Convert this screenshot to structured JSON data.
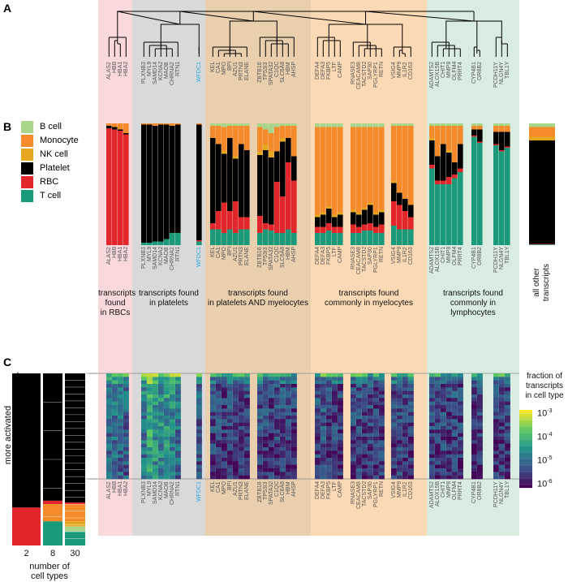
{
  "panels": {
    "a": "A",
    "b": "B",
    "c": "C"
  },
  "colors": {
    "B cell": "#a8d58a",
    "Monocyte": "#f58a2a",
    "NK cell": "#e6a61e",
    "Platelet": "#000000",
    "RBC": "#e3262b",
    "T cell": "#1a9a7a"
  },
  "legend": [
    "B cell",
    "Monocyte",
    "NK cell",
    "Platelet",
    "RBC",
    "T cell"
  ],
  "groups": [
    {
      "caption": "transcripts\nfound\nin RBCs",
      "band_color": "#f9d9dc",
      "blocks": [
        {
          "genes": [
            {
              "name": "ALAS2",
              "comp": [
                0,
                0.02,
                0,
                0.02,
                0.96,
                0
              ],
              "heat": -5.0
            },
            {
              "name": "HBB",
              "comp": [
                0,
                0.03,
                0,
                0.02,
                0.95,
                0
              ],
              "heat": -4.9
            },
            {
              "name": "HBA1",
              "comp": [
                0,
                0.05,
                0,
                0.01,
                0.94,
                0
              ],
              "heat": -5.0
            },
            {
              "name": "HBA2",
              "comp": [
                0,
                0.08,
                0,
                0.01,
                0.91,
                0
              ],
              "heat": -5.1
            }
          ]
        }
      ]
    },
    {
      "caption": "transcripts found\nin platelets",
      "band_color": "#d9d9d9",
      "blocks": [
        {
          "genes": [
            {
              "name": "PLXNB3",
              "comp": [
                0,
                0.01,
                0,
                0.97,
                0,
                0.02
              ],
              "heat": -4.8
            },
            {
              "name": "MYL9",
              "comp": [
                0,
                0.01,
                0,
                0.97,
                0,
                0.02
              ],
              "heat": -4.2
            },
            {
              "name": "SAMD14",
              "comp": [
                0,
                0.02,
                0,
                0.95,
                0,
                0.03
              ],
              "heat": -4.4
            },
            {
              "name": "KCNA2",
              "comp": [
                0,
                0.01,
                0,
                0.96,
                0,
                0.03
              ],
              "heat": -4.6
            },
            {
              "name": "MAOB",
              "comp": [
                0,
                0.01,
                0,
                0.94,
                0,
                0.05
              ],
              "heat": -4.5
            },
            {
              "name": "CHRNA2",
              "comp": [
                0,
                0.02,
                0,
                0.88,
                0,
                0.1
              ],
              "heat": -4.7
            },
            {
              "name": "RTN1",
              "comp": [
                0,
                0.01,
                0,
                0.89,
                0,
                0.1
              ],
              "heat": -4.9
            }
          ]
        },
        {
          "genes": [
            {
              "name": "WFDC1",
              "comp": [
                0,
                0.01,
                0,
                0.95,
                0.01,
                0.03
              ],
              "heat": -5.2,
              "highlight": "#29a8e0"
            }
          ]
        }
      ]
    },
    {
      "caption": "transcripts found\nin platelets AND myelocytes",
      "band_color": "#e9cfae",
      "blocks": [
        {
          "genes": [
            {
              "name": "KEL",
              "comp": [
                0.02,
                0.1,
                0,
                0.7,
                0.05,
                0.13
              ],
              "heat": -5.5
            },
            {
              "name": "CA1",
              "comp": [
                0.02,
                0.15,
                0,
                0.55,
                0.15,
                0.13
              ],
              "heat": -5.4
            },
            {
              "name": "MPO",
              "comp": [
                0.03,
                0.2,
                0.02,
                0.4,
                0.25,
                0.1
              ],
              "heat": -5.6
            },
            {
              "name": "BPI",
              "comp": [
                0.02,
                0.1,
                0,
                0.6,
                0.15,
                0.13
              ],
              "heat": -5.5
            },
            {
              "name": "AZU1",
              "comp": [
                0.02,
                0.25,
                0.02,
                0.35,
                0.26,
                0.1
              ],
              "heat": -5.6
            },
            {
              "name": "PRTN3",
              "comp": [
                0.02,
                0.15,
                0,
                0.6,
                0.1,
                0.13
              ],
              "heat": -5.5
            },
            {
              "name": "ELANE",
              "comp": [
                0.02,
                0.2,
                0,
                0.55,
                0.1,
                0.13
              ],
              "heat": -5.6
            }
          ]
        },
        {
          "genes": [
            {
              "name": "ZBTB16",
              "comp": [
                0.03,
                0.2,
                0.03,
                0.5,
                0.14,
                0.1
              ],
              "heat": -5.4
            },
            {
              "name": "TP53I3",
              "comp": [
                0.05,
                0.12,
                0.05,
                0.6,
                0.05,
                0.13
              ],
              "heat": -5.5
            },
            {
              "name": "SPATA32",
              "comp": [
                0.08,
                0.15,
                0.05,
                0.55,
                0.05,
                0.12
              ],
              "heat": -5.6
            },
            {
              "name": "C1QC",
              "comp": [
                0.03,
                0.2,
                0,
                0.25,
                0.42,
                0.1
              ],
              "heat": -5.5
            },
            {
              "name": "SLC6A8",
              "comp": [
                0.02,
                0.1,
                0.03,
                0.45,
                0.3,
                0.1
              ],
              "heat": -5.4
            },
            {
              "name": "HBM",
              "comp": [
                0.02,
                0.1,
                0,
                0.2,
                0.55,
                0.13
              ],
              "heat": -5.6
            },
            {
              "name": "AHSP",
              "comp": [
                0.02,
                0.25,
                0,
                0.2,
                0.43,
                0.1
              ],
              "heat": -5.6
            }
          ]
        }
      ]
    },
    {
      "caption": "transcripts found\ncommonly in myelocytes",
      "band_color": "#fbd9b4",
      "blocks": [
        {
          "genes": [
            {
              "name": "DEFA4",
              "comp": [
                0.03,
                0.72,
                0.02,
                0.08,
                0.05,
                0.1
              ],
              "heat": -5.4
            },
            {
              "name": "DEFA3",
              "comp": [
                0.03,
                0.7,
                0.02,
                0.1,
                0.05,
                0.1
              ],
              "heat": -5.3
            },
            {
              "name": "FKBP5",
              "comp": [
                0.03,
                0.65,
                0.02,
                0.12,
                0.06,
                0.12
              ],
              "heat": -5.5
            },
            {
              "name": "LTF",
              "comp": [
                0.03,
                0.72,
                0.02,
                0.08,
                0.05,
                0.1
              ],
              "heat": -5.5
            },
            {
              "name": "CAMP",
              "comp": [
                0.03,
                0.7,
                0.02,
                0.1,
                0.05,
                0.1
              ],
              "heat": -5.6
            }
          ]
        },
        {
          "genes": [
            {
              "name": "RNASE3",
              "comp": [
                0.03,
                0.68,
                0.02,
                0.1,
                0.07,
                0.1
              ],
              "heat": -5.5
            },
            {
              "name": "CEACAM8",
              "comp": [
                0.03,
                0.7,
                0.02,
                0.1,
                0.05,
                0.1
              ],
              "heat": -5.4
            },
            {
              "name": "TACSTD2",
              "comp": [
                0.03,
                0.66,
                0.02,
                0.12,
                0.05,
                0.12
              ],
              "heat": -5.6
            },
            {
              "name": "SAP30",
              "comp": [
                0.03,
                0.62,
                0.02,
                0.15,
                0.06,
                0.12
              ],
              "heat": -5.5
            },
            {
              "name": "PGLYRP1",
              "comp": [
                0.03,
                0.7,
                0.02,
                0.1,
                0.05,
                0.1
              ],
              "heat": -5.6
            },
            {
              "name": "RETN",
              "comp": [
                0.03,
                0.68,
                0.02,
                0.1,
                0.07,
                0.1
              ],
              "heat": -5.5
            }
          ]
        },
        {
          "genes": [
            {
              "name": "VSIG4",
              "comp": [
                0.02,
                0.45,
                0.02,
                0.15,
                0.2,
                0.16
              ],
              "heat": -5.5
            },
            {
              "name": "MMP9",
              "comp": [
                0.02,
                0.55,
                0,
                0.1,
                0.2,
                0.13
              ],
              "heat": -5.4
            },
            {
              "name": "IL1R2",
              "comp": [
                0.02,
                0.6,
                0,
                0.1,
                0.15,
                0.13
              ],
              "heat": -5.6
            },
            {
              "name": "CD163",
              "comp": [
                0.02,
                0.65,
                0,
                0.1,
                0.1,
                0.13
              ],
              "heat": -5.5
            }
          ]
        }
      ]
    },
    {
      "caption": "transcripts found\ncommonly in lymphocytes",
      "band_color": "#d8ede0",
      "blocks": [
        {
          "genes": [
            {
              "name": "ADAMTS2",
              "comp": [
                0.02,
                0.1,
                0.02,
                0.2,
                0.03,
                0.63
              ],
              "heat": -5.5
            },
            {
              "name": "ALOX15B",
              "comp": [
                0.02,
                0.25,
                0,
                0.2,
                0.03,
                0.5
              ],
              "heat": -5.6
            },
            {
              "name": "CHIT1",
              "comp": [
                0.02,
                0.15,
                0,
                0.3,
                0.03,
                0.5
              ],
              "heat": -5.5
            },
            {
              "name": "MMP8",
              "comp": [
                0.02,
                0.2,
                0.02,
                0.2,
                0.06,
                0.5
              ],
              "heat": -5.6
            },
            {
              "name": "OLFM4",
              "comp": [
                0.02,
                0.3,
                0,
                0.1,
                0.03,
                0.55
              ],
              "heat": -5.5
            },
            {
              "name": "PRRT4",
              "comp": [
                0.02,
                0.15,
                0,
                0.2,
                0.03,
                0.6
              ],
              "heat": -5.6
            }
          ]
        },
        {
          "genes": [
            {
              "name": "CYP4B1",
              "comp": [
                0.02,
                0.03,
                0,
                0.05,
                0.01,
                0.89
              ],
              "heat": -5.6
            },
            {
              "name": "OR8B2",
              "comp": [
                0.02,
                0.03,
                0,
                0.1,
                0.01,
                0.84
              ],
              "heat": -5.5
            }
          ]
        },
        {
          "genes": [
            {
              "name": "PCDH11Y",
              "comp": [
                0.02,
                0.05,
                0,
                0.1,
                0.01,
                0.82
              ],
              "heat": -5.6
            },
            {
              "name": "NLGN4Y",
              "comp": [
                0.02,
                0.05,
                0,
                0.15,
                0.01,
                0.77
              ],
              "heat": -5.5
            },
            {
              "name": "TBL1Y",
              "comp": [
                0.02,
                0.05,
                0,
                0.12,
                0.01,
                0.8
              ],
              "heat": -5.6
            }
          ]
        }
      ]
    }
  ],
  "all_other": {
    "caption": "all other\ntranscripts",
    "comp": [
      0.03,
      0.08,
      0.03,
      0.85,
      0.005,
      0.005
    ]
  },
  "colorbar": {
    "title": "fraction of\ntranscripts\nin cell type",
    "ticks": [
      "10-3",
      "10-4",
      "10-5",
      "10-6"
    ],
    "range_log10": [
      -6.3,
      -2.9
    ]
  },
  "panel_c": {
    "axis_label": "more activated",
    "xlabel": "number of\ncell types",
    "bars": [
      {
        "label": "2",
        "segments": [
          [
            "Platelet",
            0.78
          ],
          [
            "RBC",
            0.22
          ]
        ]
      },
      {
        "label": "8",
        "segments": [
          [
            "Platelet",
            0.74
          ],
          [
            "RBC",
            0.02
          ],
          [
            "Monocyte",
            0.1
          ],
          [
            "T cell",
            0.14
          ]
        ]
      },
      {
        "label": "30",
        "segments": [
          [
            "Platelet",
            0.75
          ],
          [
            "RBC",
            0.01
          ],
          [
            "Monocyte",
            0.1
          ],
          [
            "NK cell",
            0.03
          ],
          [
            "B cell",
            0.03
          ],
          [
            "T cell",
            0.08
          ]
        ]
      }
    ]
  }
}
